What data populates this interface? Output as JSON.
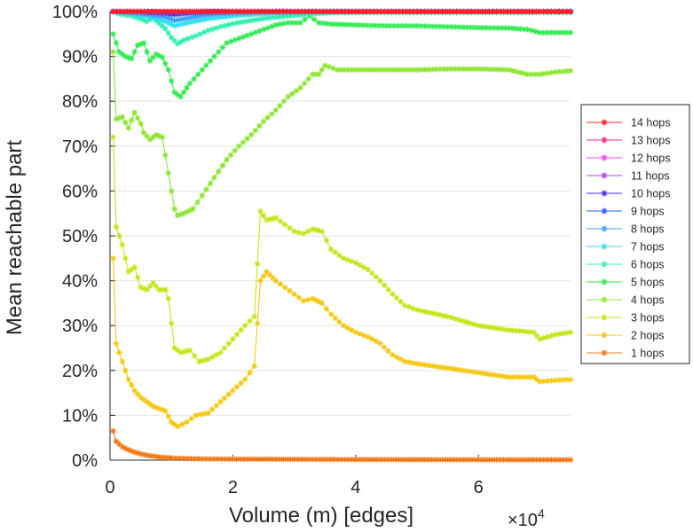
{
  "chart_data": {
    "type": "line",
    "title": "",
    "xlabel": "Volume (m) [edges]",
    "ylabel": "Mean reachable part",
    "x_scale_base": "×10",
    "x_scale_exponent": "4",
    "xlim": [
      0,
      7.5
    ],
    "ylim": [
      0,
      100
    ],
    "x_ticks": [
      0,
      2,
      4,
      6
    ],
    "x_tick_labels": [
      "0",
      "2",
      "4",
      "6"
    ],
    "y_ticks": [
      0,
      10,
      20,
      30,
      40,
      50,
      60,
      70,
      80,
      90,
      100
    ],
    "y_tick_labels": [
      "0%",
      "10%",
      "20%",
      "30%",
      "40%",
      "50%",
      "60%",
      "70%",
      "80%",
      "90%",
      "100%"
    ],
    "grid": "horizontal",
    "legend_position": "right",
    "series": [
      {
        "name": "14 hops",
        "color": "#ff2020",
        "points": [
          [
            0.05,
            100
          ],
          [
            0.5,
            100
          ],
          [
            1,
            100
          ],
          [
            2,
            100
          ],
          [
            3,
            100
          ],
          [
            4,
            100
          ],
          [
            5,
            100
          ],
          [
            6,
            100
          ],
          [
            7,
            100
          ],
          [
            7.5,
            100
          ]
        ]
      },
      {
        "name": "13 hops",
        "color": "#ff2a7a",
        "points": [
          [
            0.05,
            100
          ],
          [
            0.5,
            100
          ],
          [
            1,
            100
          ],
          [
            2,
            100
          ],
          [
            3,
            100
          ],
          [
            4,
            100
          ],
          [
            5,
            100
          ],
          [
            6,
            100
          ],
          [
            7,
            100
          ],
          [
            7.5,
            100
          ]
        ]
      },
      {
        "name": "12 hops",
        "color": "#ff40ff",
        "points": [
          [
            0.05,
            100
          ],
          [
            0.5,
            100
          ],
          [
            1,
            100
          ],
          [
            2,
            100
          ],
          [
            3,
            100
          ],
          [
            4,
            100
          ],
          [
            5,
            100
          ],
          [
            6,
            100
          ],
          [
            7,
            100
          ],
          [
            7.5,
            100
          ]
        ]
      },
      {
        "name": "11 hops",
        "color": "#b040ff",
        "points": [
          [
            0.05,
            100
          ],
          [
            0.5,
            100
          ],
          [
            1,
            100
          ],
          [
            2,
            100
          ],
          [
            3,
            100
          ],
          [
            4,
            100
          ],
          [
            5,
            100
          ],
          [
            6,
            100
          ],
          [
            7,
            100
          ],
          [
            7.5,
            100
          ]
        ]
      },
      {
        "name": "10 hops",
        "color": "#4a2af0",
        "points": [
          [
            0.05,
            100
          ],
          [
            0.5,
            100
          ],
          [
            0.9,
            99.9
          ],
          [
            1.05,
            99.6
          ],
          [
            1.2,
            99.8
          ],
          [
            1.5,
            100
          ],
          [
            2,
            100
          ],
          [
            3,
            100
          ],
          [
            4,
            100
          ],
          [
            5,
            100
          ],
          [
            6,
            100
          ],
          [
            7,
            100
          ],
          [
            7.5,
            100
          ]
        ]
      },
      {
        "name": "9 hops",
        "color": "#2a58ff",
        "points": [
          [
            0.05,
            100
          ],
          [
            0.5,
            99.9
          ],
          [
            0.9,
            99.6
          ],
          [
            1.05,
            99.3
          ],
          [
            1.3,
            99.6
          ],
          [
            1.6,
            99.9
          ],
          [
            2,
            100
          ],
          [
            3,
            100
          ],
          [
            4,
            100
          ],
          [
            5,
            100
          ],
          [
            6,
            100
          ],
          [
            7,
            100
          ],
          [
            7.5,
            100
          ]
        ]
      },
      {
        "name": "8 hops",
        "color": "#3aa0ff",
        "points": [
          [
            0.05,
            100
          ],
          [
            0.3,
            99.8
          ],
          [
            0.6,
            99.4
          ],
          [
            0.9,
            98.8
          ],
          [
            1.05,
            98.0
          ],
          [
            1.3,
            98.6
          ],
          [
            1.6,
            99.3
          ],
          [
            2,
            99.7
          ],
          [
            2.5,
            99.9
          ],
          [
            3,
            100
          ],
          [
            4,
            100
          ],
          [
            5,
            100
          ],
          [
            6,
            100
          ],
          [
            7,
            100
          ],
          [
            7.5,
            100
          ]
        ]
      },
      {
        "name": "7 hops",
        "color": "#30e0f0",
        "points": [
          [
            0.05,
            100
          ],
          [
            0.3,
            99.5
          ],
          [
            0.6,
            98.9
          ],
          [
            0.9,
            97.8
          ],
          [
            1.05,
            96.8
          ],
          [
            1.3,
            97.6
          ],
          [
            1.6,
            98.4
          ],
          [
            2,
            99.0
          ],
          [
            2.5,
            99.5
          ],
          [
            3,
            99.8
          ],
          [
            3.5,
            99.9
          ],
          [
            4,
            100
          ],
          [
            5,
            100
          ],
          [
            6,
            100
          ],
          [
            7,
            100
          ],
          [
            7.5,
            100
          ]
        ]
      },
      {
        "name": "6 hops",
        "color": "#30f0b0",
        "points": [
          [
            0.05,
            100
          ],
          [
            0.2,
            99.3
          ],
          [
            0.35,
            99.0
          ],
          [
            0.5,
            98.4
          ],
          [
            0.6,
            97.8
          ],
          [
            0.7,
            98.6
          ],
          [
            0.8,
            97.4
          ],
          [
            0.9,
            96.2
          ],
          [
            1.0,
            94.2
          ],
          [
            1.1,
            92.8
          ],
          [
            1.2,
            93.6
          ],
          [
            1.4,
            94.6
          ],
          [
            1.6,
            95.8
          ],
          [
            1.8,
            96.6
          ],
          [
            2.0,
            97.3
          ],
          [
            2.3,
            98.0
          ],
          [
            2.6,
            98.6
          ],
          [
            3.0,
            99.1
          ],
          [
            3.3,
            99.5
          ],
          [
            3.6,
            99.7
          ],
          [
            4,
            99.8
          ],
          [
            5,
            99.8
          ],
          [
            6,
            99.8
          ],
          [
            7,
            99.8
          ],
          [
            7.5,
            99.8
          ]
        ]
      },
      {
        "name": "5 hops",
        "color": "#30ea50",
        "points": [
          [
            0.05,
            95
          ],
          [
            0.15,
            91
          ],
          [
            0.25,
            90
          ],
          [
            0.35,
            89.5
          ],
          [
            0.45,
            92.5
          ],
          [
            0.55,
            93
          ],
          [
            0.65,
            89
          ],
          [
            0.75,
            90.5
          ],
          [
            0.85,
            89.8
          ],
          [
            0.95,
            87
          ],
          [
            1.05,
            82
          ],
          [
            1.15,
            81
          ],
          [
            1.3,
            84
          ],
          [
            1.5,
            87
          ],
          [
            1.7,
            90
          ],
          [
            1.9,
            93
          ],
          [
            2.1,
            94
          ],
          [
            2.3,
            95
          ],
          [
            2.5,
            96
          ],
          [
            2.7,
            97
          ],
          [
            2.9,
            97.5
          ],
          [
            3.1,
            97.5
          ],
          [
            3.25,
            99
          ],
          [
            3.4,
            97.5
          ],
          [
            3.6,
            97.2
          ],
          [
            4,
            97
          ],
          [
            4.5,
            96.8
          ],
          [
            5,
            96.8
          ],
          [
            5.5,
            96.6
          ],
          [
            6,
            96.4
          ],
          [
            6.5,
            96.3
          ],
          [
            6.8,
            96
          ],
          [
            7.0,
            95.3
          ],
          [
            7.25,
            95.3
          ],
          [
            7.5,
            95.3
          ]
        ]
      },
      {
        "name": "4 hops",
        "color": "#8ce630",
        "points": [
          [
            0.05,
            91
          ],
          [
            0.1,
            76
          ],
          [
            0.2,
            76.5
          ],
          [
            0.3,
            74
          ],
          [
            0.4,
            77.5
          ],
          [
            0.5,
            75
          ],
          [
            0.55,
            73
          ],
          [
            0.65,
            71.5
          ],
          [
            0.75,
            72.5
          ],
          [
            0.85,
            72
          ],
          [
            0.95,
            64
          ],
          [
            1.05,
            56
          ],
          [
            1.1,
            54.5
          ],
          [
            1.2,
            55
          ],
          [
            1.35,
            56
          ],
          [
            1.5,
            59
          ],
          [
            1.7,
            63
          ],
          [
            1.9,
            67
          ],
          [
            2.1,
            70
          ],
          [
            2.3,
            72.5
          ],
          [
            2.5,
            75.5
          ],
          [
            2.7,
            78
          ],
          [
            2.9,
            81
          ],
          [
            3.1,
            83
          ],
          [
            3.3,
            86
          ],
          [
            3.4,
            86
          ],
          [
            3.5,
            88
          ],
          [
            3.7,
            87
          ],
          [
            4,
            87
          ],
          [
            4.5,
            87
          ],
          [
            5,
            87
          ],
          [
            5.5,
            87.2
          ],
          [
            6,
            87.2
          ],
          [
            6.5,
            87
          ],
          [
            6.8,
            86
          ],
          [
            7.0,
            86
          ],
          [
            7.25,
            86.5
          ],
          [
            7.5,
            86.8
          ]
        ]
      },
      {
        "name": "3 hops",
        "color": "#c3e618",
        "points": [
          [
            0.05,
            72
          ],
          [
            0.1,
            52
          ],
          [
            0.2,
            48
          ],
          [
            0.3,
            42
          ],
          [
            0.4,
            43
          ],
          [
            0.5,
            38.5
          ],
          [
            0.6,
            38
          ],
          [
            0.7,
            39.5
          ],
          [
            0.8,
            38
          ],
          [
            0.9,
            38
          ],
          [
            0.95,
            36
          ],
          [
            1.05,
            25
          ],
          [
            1.15,
            24
          ],
          [
            1.3,
            24.5
          ],
          [
            1.45,
            22
          ],
          [
            1.6,
            22.5
          ],
          [
            1.8,
            24
          ],
          [
            2.0,
            27
          ],
          [
            2.2,
            30
          ],
          [
            2.35,
            32
          ],
          [
            2.45,
            55.5
          ],
          [
            2.55,
            53.5
          ],
          [
            2.7,
            54
          ],
          [
            2.85,
            52.5
          ],
          [
            3.0,
            51
          ],
          [
            3.15,
            50.5
          ],
          [
            3.3,
            51.5
          ],
          [
            3.45,
            51
          ],
          [
            3.6,
            47
          ],
          [
            3.8,
            45
          ],
          [
            4.0,
            44
          ],
          [
            4.2,
            42.5
          ],
          [
            4.4,
            40
          ],
          [
            4.6,
            37
          ],
          [
            4.8,
            34.5
          ],
          [
            5.0,
            33.5
          ],
          [
            5.5,
            32
          ],
          [
            6.0,
            30
          ],
          [
            6.5,
            29
          ],
          [
            6.9,
            28.5
          ],
          [
            7.0,
            27
          ],
          [
            7.25,
            28
          ],
          [
            7.5,
            28.5
          ]
        ]
      },
      {
        "name": "2 hops",
        "color": "#f4c810",
        "points": [
          [
            0.05,
            45
          ],
          [
            0.1,
            26
          ],
          [
            0.2,
            22
          ],
          [
            0.3,
            18
          ],
          [
            0.4,
            15.5
          ],
          [
            0.5,
            14
          ],
          [
            0.6,
            13
          ],
          [
            0.7,
            12
          ],
          [
            0.8,
            11.5
          ],
          [
            0.9,
            11
          ],
          [
            1.0,
            8.5
          ],
          [
            1.1,
            7.5
          ],
          [
            1.25,
            8.5
          ],
          [
            1.4,
            10
          ],
          [
            1.6,
            10.5
          ],
          [
            1.8,
            13
          ],
          [
            2.0,
            15.5
          ],
          [
            2.2,
            18
          ],
          [
            2.35,
            21
          ],
          [
            2.45,
            40
          ],
          [
            2.55,
            42
          ],
          [
            2.7,
            40
          ],
          [
            2.85,
            38.5
          ],
          [
            3.0,
            37
          ],
          [
            3.15,
            35.5
          ],
          [
            3.3,
            36
          ],
          [
            3.45,
            35
          ],
          [
            3.6,
            32.5
          ],
          [
            3.8,
            30
          ],
          [
            4.0,
            28.5
          ],
          [
            4.2,
            27.5
          ],
          [
            4.4,
            26
          ],
          [
            4.6,
            23.5
          ],
          [
            4.8,
            22
          ],
          [
            5.0,
            21.5
          ],
          [
            5.5,
            20.5
          ],
          [
            6.0,
            19.5
          ],
          [
            6.5,
            18.5
          ],
          [
            6.9,
            18.5
          ],
          [
            7.0,
            17.5
          ],
          [
            7.25,
            17.8
          ],
          [
            7.5,
            18
          ]
        ]
      },
      {
        "name": "1 hops",
        "color": "#f47818",
        "points": [
          [
            0.05,
            6.5
          ],
          [
            0.1,
            4.2
          ],
          [
            0.2,
            3.0
          ],
          [
            0.3,
            2.3
          ],
          [
            0.4,
            1.8
          ],
          [
            0.5,
            1.4
          ],
          [
            0.6,
            1.1
          ],
          [
            0.7,
            0.9
          ],
          [
            0.8,
            0.7
          ],
          [
            0.9,
            0.6
          ],
          [
            1.0,
            0.5
          ],
          [
            1.2,
            0.4
          ],
          [
            1.5,
            0.3
          ],
          [
            2,
            0.25
          ],
          [
            3,
            0.2
          ],
          [
            4,
            0.15
          ],
          [
            5,
            0.12
          ],
          [
            6,
            0.1
          ],
          [
            7,
            0.1
          ],
          [
            7.5,
            0.1
          ]
        ]
      }
    ]
  }
}
